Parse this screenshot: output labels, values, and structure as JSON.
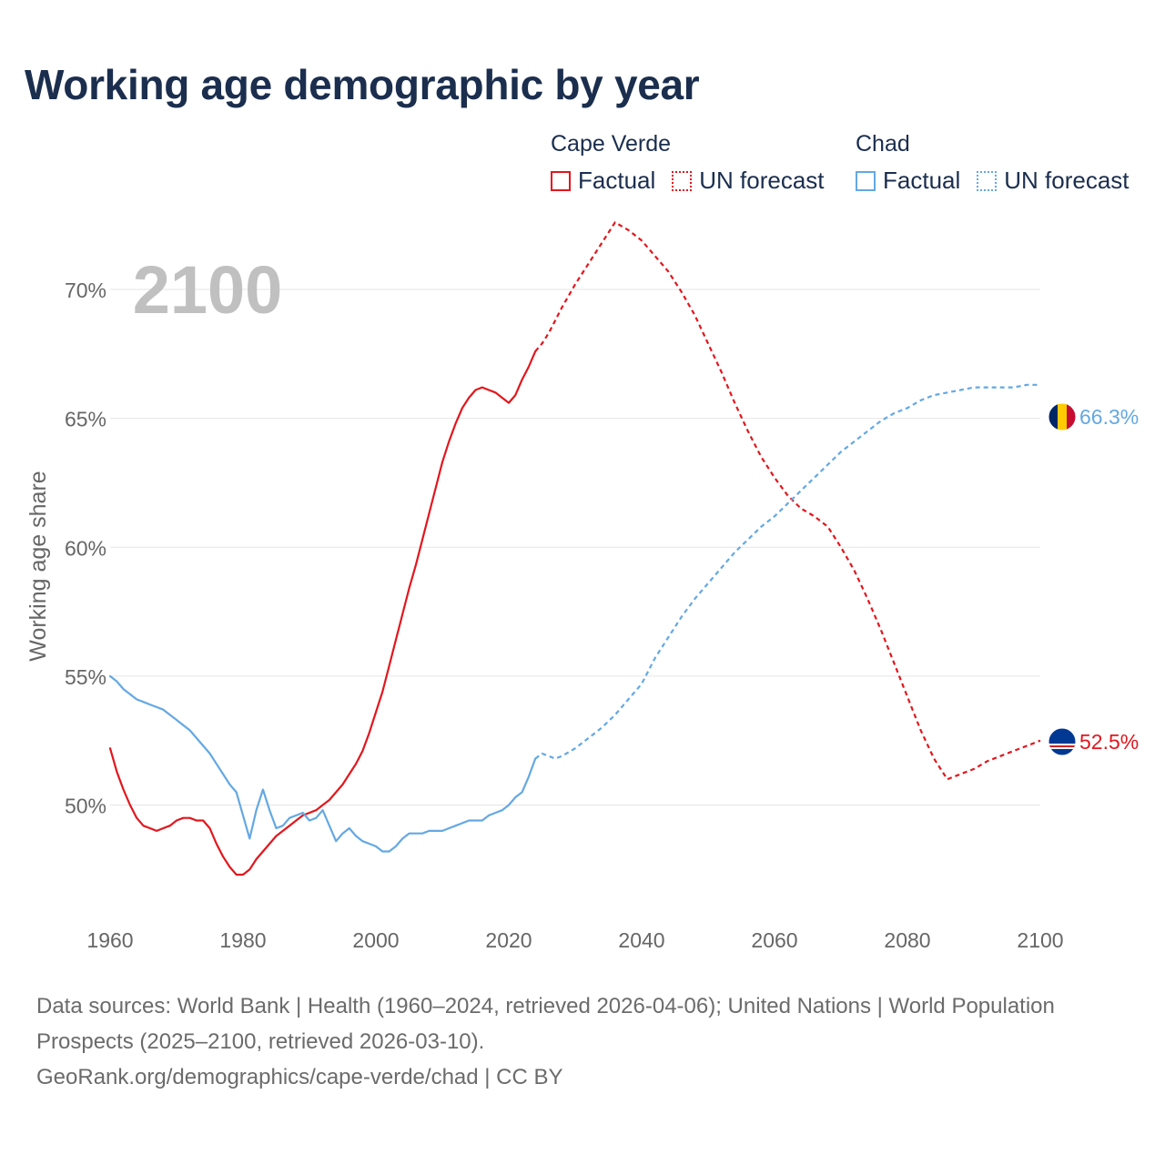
{
  "title": "Working age demographic by year",
  "legend": {
    "groups": [
      {
        "name": "Cape Verde",
        "color": "#e3161d",
        "factual_label": "Factual",
        "forecast_label": "UN forecast"
      },
      {
        "name": "Chad",
        "color": "#64a8e3",
        "factual_label": "Factual",
        "forecast_label": "UN forecast"
      }
    ]
  },
  "chart_data": {
    "type": "line",
    "title": "Working age demographic by year",
    "xlabel": "",
    "ylabel": "Working age share",
    "xlim": [
      1960,
      2100
    ],
    "ylim": [
      45.5,
      73
    ],
    "grid": true,
    "x_ticks": [
      "1960",
      "1980",
      "2000",
      "2020",
      "2040",
      "2060",
      "2080",
      "2100"
    ],
    "x_tick_values": [
      1960,
      1980,
      2000,
      2020,
      2040,
      2060,
      2080,
      2100
    ],
    "y_ticks": [
      "50%",
      "55%",
      "60%",
      "65%",
      "70%"
    ],
    "y_tick_values": [
      50,
      55,
      60,
      65,
      70
    ],
    "year_watermark": "2100",
    "factual_range": [
      1960,
      2024
    ],
    "forecast_range": [
      2025,
      2100
    ],
    "series": [
      {
        "name": "Cape Verde",
        "color": "#e3161d",
        "end_label": "52.5%",
        "factual": [
          [
            1960,
            52.2
          ],
          [
            1961,
            51.3
          ],
          [
            1962,
            50.6
          ],
          [
            1963,
            50.0
          ],
          [
            1964,
            49.5
          ],
          [
            1965,
            49.2
          ],
          [
            1966,
            49.1
          ],
          [
            1967,
            49.0
          ],
          [
            1968,
            49.1
          ],
          [
            1969,
            49.2
          ],
          [
            1970,
            49.4
          ],
          [
            1971,
            49.5
          ],
          [
            1972,
            49.5
          ],
          [
            1973,
            49.4
          ],
          [
            1974,
            49.4
          ],
          [
            1975,
            49.1
          ],
          [
            1976,
            48.5
          ],
          [
            1977,
            48.0
          ],
          [
            1978,
            47.6
          ],
          [
            1979,
            47.3
          ],
          [
            1980,
            47.3
          ],
          [
            1981,
            47.5
          ],
          [
            1982,
            47.9
          ],
          [
            1983,
            48.2
          ],
          [
            1984,
            48.5
          ],
          [
            1985,
            48.8
          ],
          [
            1986,
            49.0
          ],
          [
            1987,
            49.2
          ],
          [
            1988,
            49.4
          ],
          [
            1989,
            49.6
          ],
          [
            1990,
            49.7
          ],
          [
            1991,
            49.8
          ],
          [
            1992,
            50.0
          ],
          [
            1993,
            50.2
          ],
          [
            1994,
            50.5
          ],
          [
            1995,
            50.8
          ],
          [
            1996,
            51.2
          ],
          [
            1997,
            51.6
          ],
          [
            1998,
            52.1
          ],
          [
            1999,
            52.8
          ],
          [
            2000,
            53.6
          ],
          [
            2001,
            54.4
          ],
          [
            2002,
            55.4
          ],
          [
            2003,
            56.4
          ],
          [
            2004,
            57.4
          ],
          [
            2005,
            58.4
          ],
          [
            2006,
            59.3
          ],
          [
            2007,
            60.3
          ],
          [
            2008,
            61.3
          ],
          [
            2009,
            62.3
          ],
          [
            2010,
            63.3
          ],
          [
            2011,
            64.1
          ],
          [
            2012,
            64.8
          ],
          [
            2013,
            65.4
          ],
          [
            2014,
            65.8
          ],
          [
            2015,
            66.1
          ],
          [
            2016,
            66.2
          ],
          [
            2017,
            66.1
          ],
          [
            2018,
            66.0
          ],
          [
            2019,
            65.8
          ],
          [
            2020,
            65.6
          ],
          [
            2021,
            65.9
          ],
          [
            2022,
            66.5
          ],
          [
            2023,
            67.0
          ],
          [
            2024,
            67.6
          ]
        ],
        "forecast": [
          [
            2024,
            67.6
          ],
          [
            2025,
            67.9
          ],
          [
            2026,
            68.3
          ],
          [
            2027,
            68.8
          ],
          [
            2028,
            69.3
          ],
          [
            2030,
            70.2
          ],
          [
            2032,
            71.0
          ],
          [
            2034,
            71.8
          ],
          [
            2036,
            72.6
          ],
          [
            2038,
            72.3
          ],
          [
            2040,
            71.9
          ],
          [
            2042,
            71.3
          ],
          [
            2044,
            70.7
          ],
          [
            2046,
            69.9
          ],
          [
            2048,
            69.0
          ],
          [
            2050,
            67.9
          ],
          [
            2052,
            66.8
          ],
          [
            2054,
            65.6
          ],
          [
            2056,
            64.5
          ],
          [
            2058,
            63.5
          ],
          [
            2060,
            62.7
          ],
          [
            2062,
            62.0
          ],
          [
            2064,
            61.5
          ],
          [
            2066,
            61.2
          ],
          [
            2068,
            60.8
          ],
          [
            2070,
            60.0
          ],
          [
            2072,
            59.1
          ],
          [
            2074,
            58.0
          ],
          [
            2076,
            56.8
          ],
          [
            2078,
            55.5
          ],
          [
            2080,
            54.2
          ],
          [
            2082,
            52.9
          ],
          [
            2084,
            51.8
          ],
          [
            2086,
            51.0
          ],
          [
            2088,
            51.2
          ],
          [
            2090,
            51.4
          ],
          [
            2092,
            51.7
          ],
          [
            2094,
            51.9
          ],
          [
            2096,
            52.1
          ],
          [
            2098,
            52.3
          ],
          [
            2100,
            52.5
          ]
        ]
      },
      {
        "name": "Chad",
        "color": "#64a8e3",
        "end_label": "66.3%",
        "factual": [
          [
            1960,
            55.0
          ],
          [
            1961,
            54.8
          ],
          [
            1962,
            54.5
          ],
          [
            1963,
            54.3
          ],
          [
            1964,
            54.1
          ],
          [
            1965,
            54.0
          ],
          [
            1966,
            53.9
          ],
          [
            1967,
            53.8
          ],
          [
            1968,
            53.7
          ],
          [
            1969,
            53.5
          ],
          [
            1970,
            53.3
          ],
          [
            1971,
            53.1
          ],
          [
            1972,
            52.9
          ],
          [
            1973,
            52.6
          ],
          [
            1974,
            52.3
          ],
          [
            1975,
            52.0
          ],
          [
            1976,
            51.6
          ],
          [
            1977,
            51.2
          ],
          [
            1978,
            50.8
          ],
          [
            1979,
            50.5
          ],
          [
            1980,
            49.6
          ],
          [
            1981,
            48.7
          ],
          [
            1982,
            49.8
          ],
          [
            1983,
            50.6
          ],
          [
            1984,
            49.8
          ],
          [
            1985,
            49.1
          ],
          [
            1986,
            49.2
          ],
          [
            1987,
            49.5
          ],
          [
            1988,
            49.6
          ],
          [
            1989,
            49.7
          ],
          [
            1990,
            49.4
          ],
          [
            1991,
            49.5
          ],
          [
            1992,
            49.8
          ],
          [
            1993,
            49.2
          ],
          [
            1994,
            48.6
          ],
          [
            1995,
            48.9
          ],
          [
            1996,
            49.1
          ],
          [
            1997,
            48.8
          ],
          [
            1998,
            48.6
          ],
          [
            1999,
            48.5
          ],
          [
            2000,
            48.4
          ],
          [
            2001,
            48.2
          ],
          [
            2002,
            48.2
          ],
          [
            2003,
            48.4
          ],
          [
            2004,
            48.7
          ],
          [
            2005,
            48.9
          ],
          [
            2006,
            48.9
          ],
          [
            2007,
            48.9
          ],
          [
            2008,
            49.0
          ],
          [
            2009,
            49.0
          ],
          [
            2010,
            49.0
          ],
          [
            2011,
            49.1
          ],
          [
            2012,
            49.2
          ],
          [
            2013,
            49.3
          ],
          [
            2014,
            49.4
          ],
          [
            2015,
            49.4
          ],
          [
            2016,
            49.4
          ],
          [
            2017,
            49.6
          ],
          [
            2018,
            49.7
          ],
          [
            2019,
            49.8
          ],
          [
            2020,
            50.0
          ],
          [
            2021,
            50.3
          ],
          [
            2022,
            50.5
          ],
          [
            2023,
            51.1
          ],
          [
            2024,
            51.8
          ]
        ],
        "forecast": [
          [
            2024,
            51.8
          ],
          [
            2025,
            52.0
          ],
          [
            2026,
            51.9
          ],
          [
            2027,
            51.8
          ],
          [
            2028,
            51.9
          ],
          [
            2030,
            52.2
          ],
          [
            2032,
            52.6
          ],
          [
            2034,
            53.0
          ],
          [
            2036,
            53.5
          ],
          [
            2038,
            54.1
          ],
          [
            2040,
            54.7
          ],
          [
            2042,
            55.7
          ],
          [
            2044,
            56.5
          ],
          [
            2046,
            57.3
          ],
          [
            2048,
            58.0
          ],
          [
            2050,
            58.6
          ],
          [
            2052,
            59.2
          ],
          [
            2054,
            59.8
          ],
          [
            2056,
            60.3
          ],
          [
            2058,
            60.8
          ],
          [
            2060,
            61.2
          ],
          [
            2062,
            61.7
          ],
          [
            2064,
            62.2
          ],
          [
            2066,
            62.7
          ],
          [
            2068,
            63.2
          ],
          [
            2070,
            63.7
          ],
          [
            2072,
            64.1
          ],
          [
            2074,
            64.5
          ],
          [
            2076,
            64.9
          ],
          [
            2078,
            65.2
          ],
          [
            2080,
            65.4
          ],
          [
            2082,
            65.7
          ],
          [
            2084,
            65.9
          ],
          [
            2086,
            66.0
          ],
          [
            2088,
            66.1
          ],
          [
            2090,
            66.2
          ],
          [
            2092,
            66.2
          ],
          [
            2094,
            66.2
          ],
          [
            2096,
            66.2
          ],
          [
            2098,
            66.3
          ],
          [
            2100,
            66.3
          ]
        ]
      }
    ]
  },
  "sources": {
    "line1": "Data sources: World Bank | Health (1960–2024, retrieved 2026-04-06); United Nations | World Population Prospects (2025–2100, retrieved 2026-03-10).",
    "line2": "GeoRank.org/demographics/cape-verde/chad | CC BY"
  }
}
